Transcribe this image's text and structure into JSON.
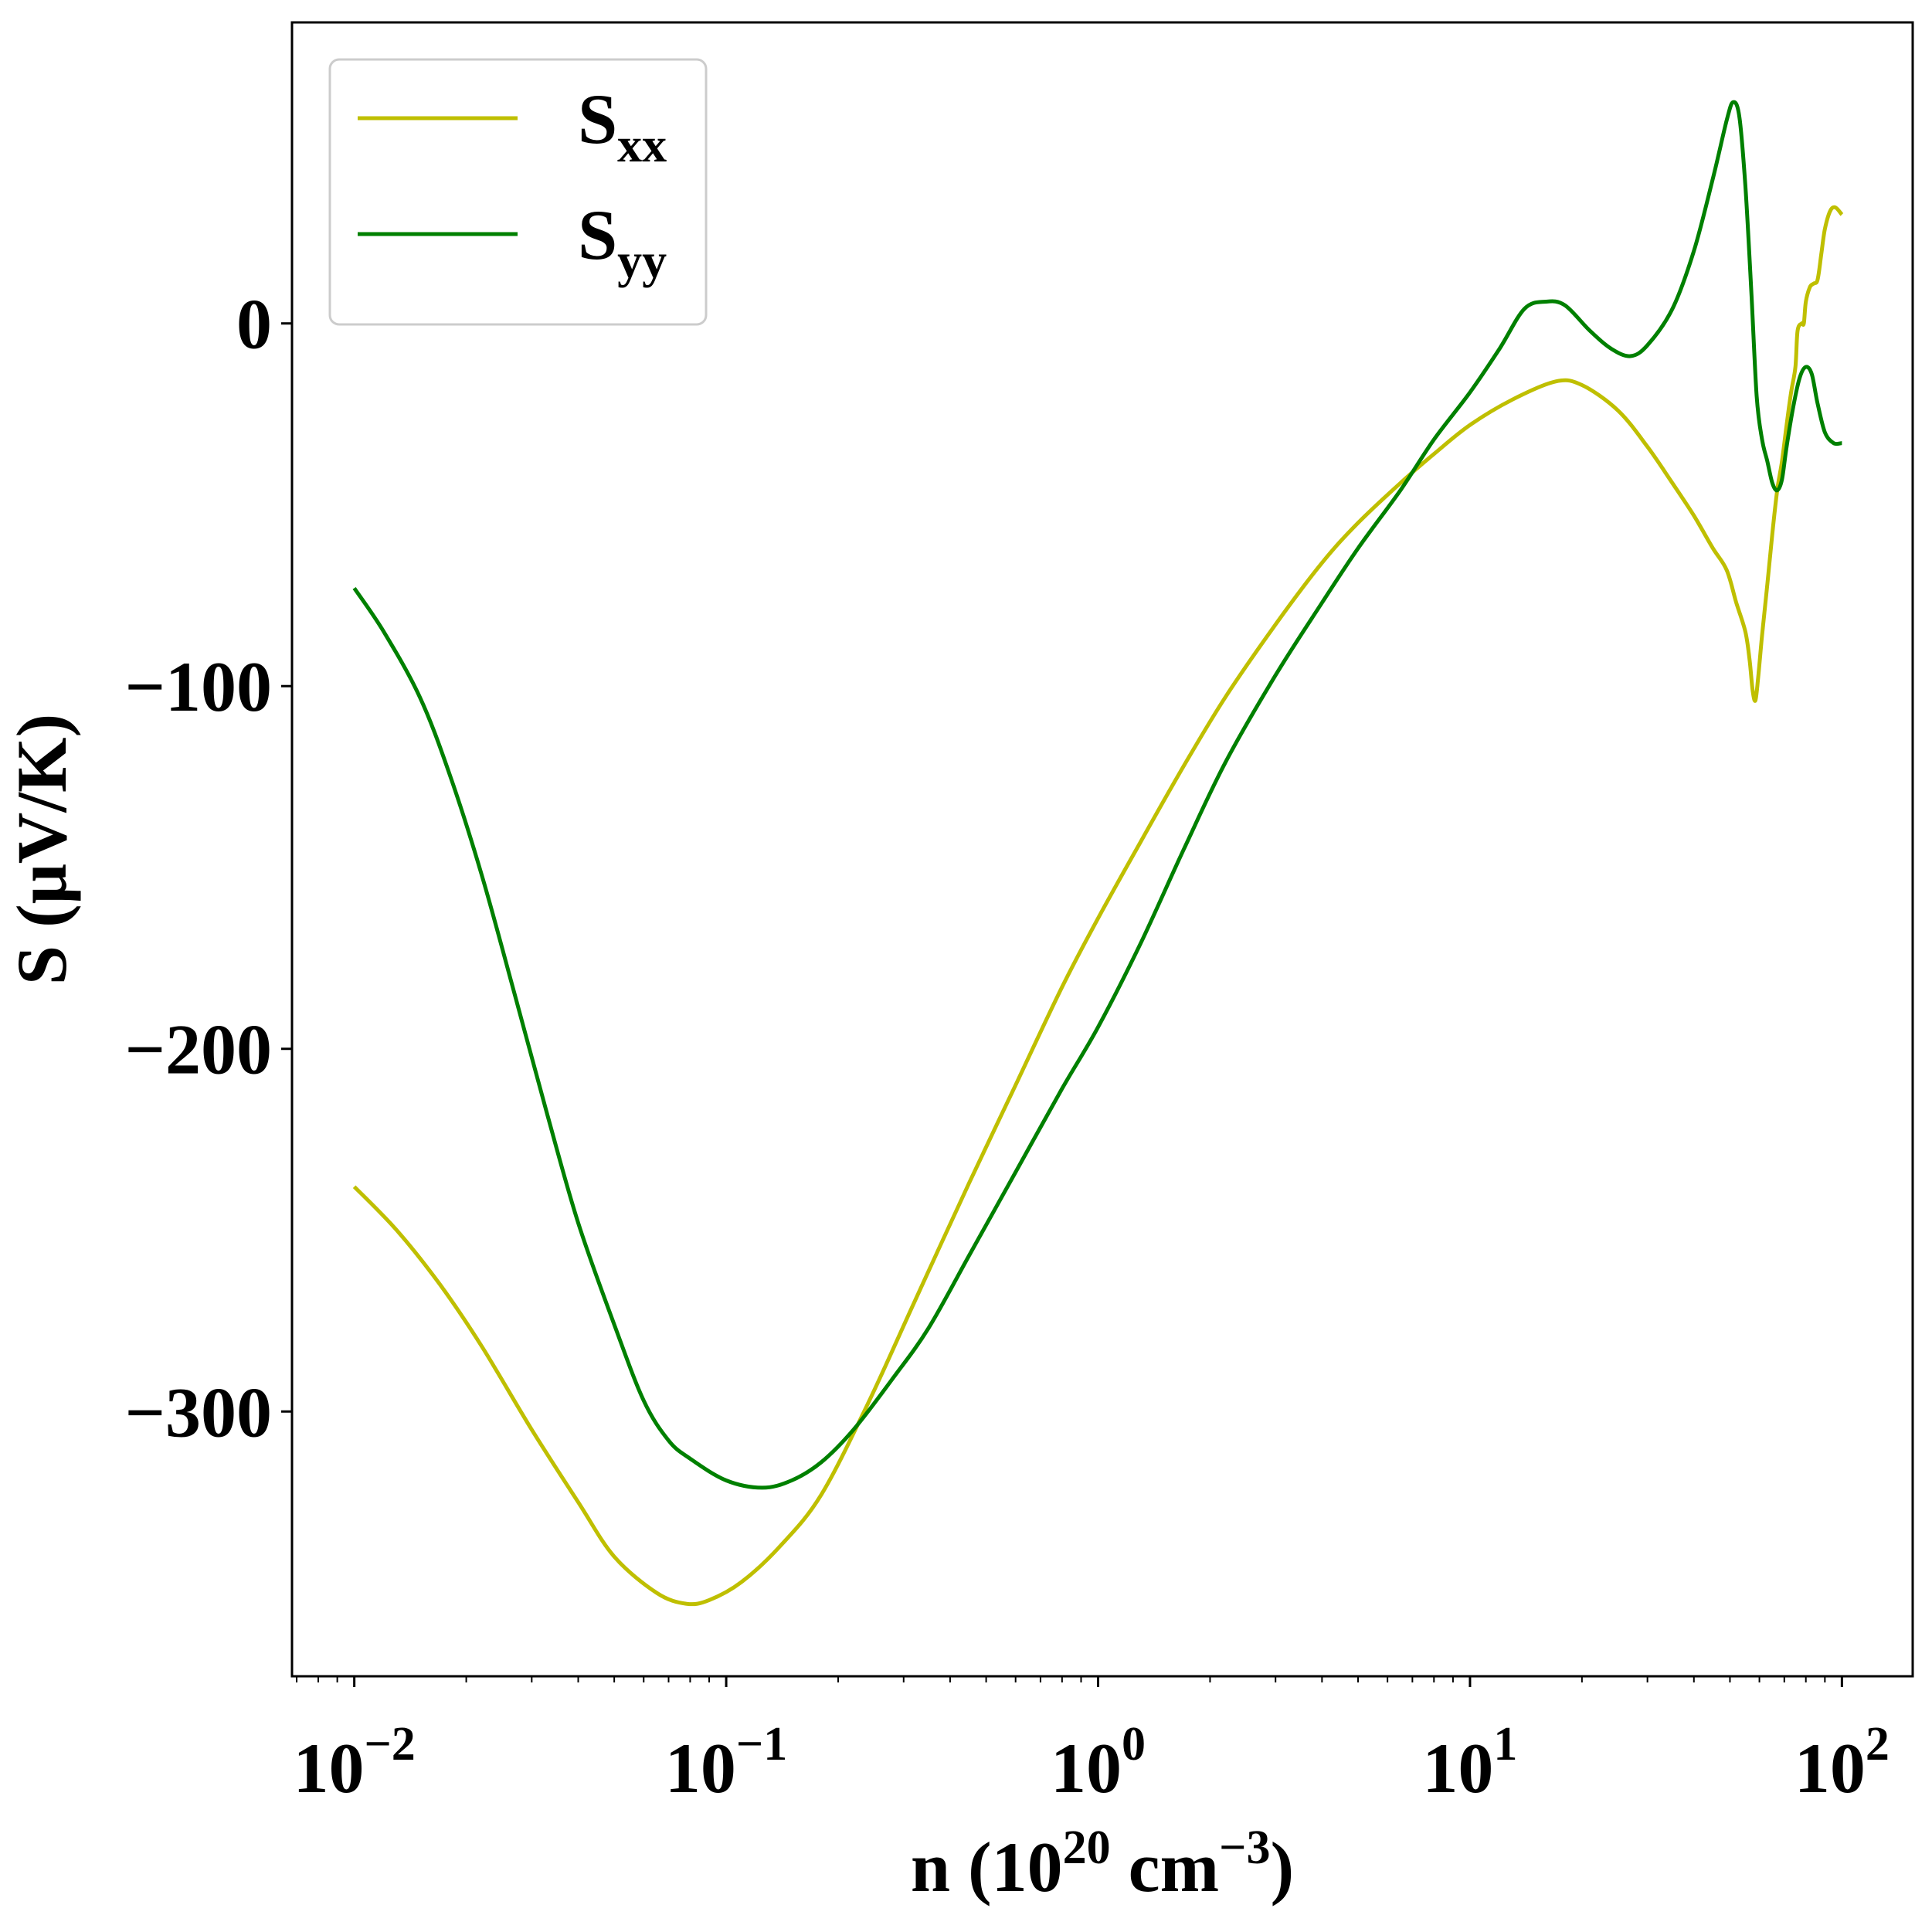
{
  "chart_data": {
    "type": "line",
    "xlabel": {
      "prefix": "n (10",
      "exp1": "20",
      "mid": " cm",
      "exp2": "−3",
      "suffix": ")"
    },
    "ylabel": "S (μV/K)",
    "xscale": "log",
    "xlim": [
      0.0068,
      155
    ],
    "ylim": [
      -373,
      83
    ],
    "x_ticks": [
      {
        "value": 0.01,
        "base": "10",
        "exp": "−2"
      },
      {
        "value": 0.1,
        "base": "10",
        "exp": "−1"
      },
      {
        "value": 1,
        "base": "10",
        "exp": "0"
      },
      {
        "value": 10,
        "base": "10",
        "exp": "1"
      },
      {
        "value": 100,
        "base": "10",
        "exp": "2"
      }
    ],
    "y_ticks": [
      {
        "value": 0,
        "label": "0"
      },
      {
        "value": -100,
        "label": "−100"
      },
      {
        "value": -200,
        "label": "−200"
      },
      {
        "value": -300,
        "label": "−300"
      }
    ],
    "grid": false,
    "legend": {
      "position": "top-left"
    },
    "series": [
      {
        "name": "S",
        "sub": "xx",
        "color": "#bfbf00",
        "points": [
          [
            0.01,
            -238
          ],
          [
            0.013,
            -250
          ],
          [
            0.017,
            -265
          ],
          [
            0.022,
            -282
          ],
          [
            0.03,
            -305
          ],
          [
            0.04,
            -325
          ],
          [
            0.05,
            -340
          ],
          [
            0.065,
            -350
          ],
          [
            0.078,
            -353
          ],
          [
            0.09,
            -352
          ],
          [
            0.11,
            -347
          ],
          [
            0.14,
            -337
          ],
          [
            0.18,
            -323
          ],
          [
            0.24,
            -298
          ],
          [
            0.32,
            -270
          ],
          [
            0.45,
            -237
          ],
          [
            0.6,
            -210
          ],
          [
            0.8,
            -183
          ],
          [
            1.0,
            -164
          ],
          [
            1.3,
            -143
          ],
          [
            1.7,
            -122
          ],
          [
            2.2,
            -103
          ],
          [
            3.0,
            -83
          ],
          [
            4.0,
            -66
          ],
          [
            5.0,
            -55
          ],
          [
            6.5,
            -44
          ],
          [
            8.0,
            -36
          ],
          [
            10,
            -28
          ],
          [
            13,
            -21
          ],
          [
            17,
            -16
          ],
          [
            20,
            -17
          ],
          [
            25,
            -24
          ],
          [
            30,
            -34
          ],
          [
            35,
            -44
          ],
          [
            40,
            -53
          ],
          [
            45,
            -62
          ],
          [
            49,
            -68
          ],
          [
            52,
            -77
          ],
          [
            55,
            -85
          ],
          [
            56.5,
            -93
          ],
          [
            57.5,
            -101
          ],
          [
            58.5,
            -104
          ],
          [
            59.5,
            -98
          ],
          [
            61,
            -86
          ],
          [
            63,
            -72
          ],
          [
            65,
            -58
          ],
          [
            67,
            -46
          ],
          [
            69,
            -38
          ],
          [
            71,
            -28
          ],
          [
            73,
            -19
          ],
          [
            75,
            -12
          ],
          [
            76,
            -2
          ],
          [
            78,
            0
          ],
          [
            79,
            0
          ],
          [
            80,
            6
          ],
          [
            82,
            10
          ],
          [
            84,
            11
          ],
          [
            86,
            12
          ],
          [
            88,
            19
          ],
          [
            90,
            26
          ],
          [
            93,
            31
          ],
          [
            96,
            32
          ],
          [
            100,
            30
          ]
        ]
      },
      {
        "name": "S",
        "sub": "yy",
        "color": "#008000",
        "points": [
          [
            0.01,
            -73
          ],
          [
            0.012,
            -85
          ],
          [
            0.015,
            -103
          ],
          [
            0.018,
            -124
          ],
          [
            0.022,
            -152
          ],
          [
            0.027,
            -185
          ],
          [
            0.033,
            -218
          ],
          [
            0.04,
            -248
          ],
          [
            0.05,
            -276
          ],
          [
            0.06,
            -297
          ],
          [
            0.07,
            -308
          ],
          [
            0.08,
            -313
          ],
          [
            0.1,
            -319
          ],
          [
            0.125,
            -321
          ],
          [
            0.15,
            -319
          ],
          [
            0.18,
            -314
          ],
          [
            0.22,
            -305
          ],
          [
            0.28,
            -291
          ],
          [
            0.35,
            -277
          ],
          [
            0.45,
            -257
          ],
          [
            0.6,
            -234
          ],
          [
            0.8,
            -211
          ],
          [
            1.0,
            -194
          ],
          [
            1.3,
            -171
          ],
          [
            1.7,
            -145
          ],
          [
            2.2,
            -121
          ],
          [
            3.0,
            -97
          ],
          [
            4.0,
            -77
          ],
          [
            5.0,
            -62
          ],
          [
            6.5,
            -46
          ],
          [
            8.0,
            -32
          ],
          [
            10,
            -19
          ],
          [
            12,
            -7
          ],
          [
            14,
            4
          ],
          [
            16,
            6
          ],
          [
            18,
            5
          ],
          [
            21,
            -2
          ],
          [
            24,
            -7
          ],
          [
            27,
            -9
          ],
          [
            30,
            -6
          ],
          [
            35,
            4
          ],
          [
            40,
            20
          ],
          [
            45,
            40
          ],
          [
            49,
            56
          ],
          [
            51,
            61
          ],
          [
            53,
            57
          ],
          [
            55,
            38
          ],
          [
            57,
            10
          ],
          [
            59,
            -20
          ],
          [
            61,
            -32
          ],
          [
            63,
            -38
          ],
          [
            65,
            -44
          ],
          [
            67,
            -46
          ],
          [
            69,
            -43
          ],
          [
            71,
            -34
          ],
          [
            74,
            -23
          ],
          [
            77,
            -15
          ],
          [
            80,
            -12
          ],
          [
            83,
            -14
          ],
          [
            86,
            -22
          ],
          [
            90,
            -30
          ],
          [
            95,
            -33
          ],
          [
            100,
            -33
          ]
        ]
      }
    ]
  }
}
